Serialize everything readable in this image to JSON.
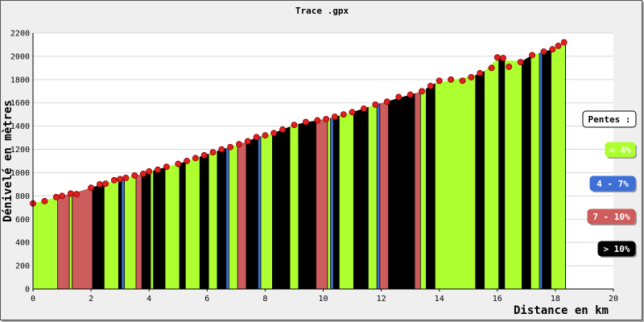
{
  "chart_data": {
    "type": "area",
    "title": "Trace .gpx",
    "xlabel": "Distance en km",
    "ylabel": "Dénivelé en mètres",
    "xlim": [
      0,
      20
    ],
    "ylim": [
      0,
      2200
    ],
    "x_ticks": [
      "0",
      "2",
      "4",
      "6",
      "8",
      "10",
      "12",
      "14",
      "16",
      "18",
      "20"
    ],
    "y_ticks": [
      "0",
      "200",
      "400",
      "600",
      "800",
      "1000",
      "1200",
      "1400",
      "1600",
      "1800",
      "2000",
      "2200"
    ],
    "grid": true,
    "legend": {
      "title": "Pentes :",
      "position": "right",
      "items": [
        {
          "label": "< 4%",
          "color": "#adff2f",
          "text_color": "#ffffff"
        },
        {
          "label": "4 - 7%",
          "color": "#3d6fd6",
          "text_color": "#ffffff"
        },
        {
          "label": "7 - 10%",
          "color": "#cd5c5c",
          "text_color": "#ffffff"
        },
        {
          "label": "> 10%",
          "color": "#000000",
          "text_color": "#ffffff"
        }
      ]
    },
    "profile": [
      [
        0.0,
        735
      ],
      [
        0.4,
        755
      ],
      [
        0.8,
        790
      ],
      [
        1.0,
        800
      ],
      [
        1.3,
        820
      ],
      [
        1.5,
        815
      ],
      [
        2.0,
        870
      ],
      [
        2.3,
        900
      ],
      [
        2.5,
        905
      ],
      [
        2.8,
        935
      ],
      [
        3.0,
        945
      ],
      [
        3.2,
        955
      ],
      [
        3.5,
        975
      ],
      [
        3.8,
        990
      ],
      [
        4.0,
        1010
      ],
      [
        4.3,
        1025
      ],
      [
        4.6,
        1050
      ],
      [
        5.0,
        1075
      ],
      [
        5.3,
        1100
      ],
      [
        5.6,
        1125
      ],
      [
        5.9,
        1150
      ],
      [
        6.2,
        1175
      ],
      [
        6.5,
        1200
      ],
      [
        6.8,
        1220
      ],
      [
        7.1,
        1245
      ],
      [
        7.4,
        1270
      ],
      [
        7.7,
        1305
      ],
      [
        8.0,
        1320
      ],
      [
        8.3,
        1340
      ],
      [
        8.6,
        1370
      ],
      [
        9.0,
        1410
      ],
      [
        9.4,
        1435
      ],
      [
        9.8,
        1450
      ],
      [
        10.1,
        1460
      ],
      [
        10.4,
        1480
      ],
      [
        10.7,
        1500
      ],
      [
        11.0,
        1520
      ],
      [
        11.4,
        1550
      ],
      [
        11.8,
        1585
      ],
      [
        12.2,
        1610
      ],
      [
        12.6,
        1650
      ],
      [
        13.0,
        1670
      ],
      [
        13.4,
        1700
      ],
      [
        13.7,
        1745
      ],
      [
        14.0,
        1790
      ],
      [
        14.4,
        1800
      ],
      [
        14.8,
        1790
      ],
      [
        15.1,
        1820
      ],
      [
        15.4,
        1855
      ],
      [
        15.8,
        1900
      ],
      [
        16.0,
        1990
      ],
      [
        16.2,
        1985
      ],
      [
        16.4,
        1910
      ],
      [
        16.8,
        1950
      ],
      [
        17.2,
        2010
      ],
      [
        17.6,
        2040
      ],
      [
        17.9,
        2060
      ],
      [
        18.1,
        2090
      ],
      [
        18.3,
        2120
      ]
    ],
    "slope_segments": [
      {
        "from": 0.0,
        "to": 0.85,
        "class": "< 4%"
      },
      {
        "from": 0.85,
        "to": 1.25,
        "class": "7 - 10%"
      },
      {
        "from": 1.25,
        "to": 1.35,
        "class": "< 4%"
      },
      {
        "from": 1.35,
        "to": 2.05,
        "class": "7 - 10%"
      },
      {
        "from": 2.05,
        "to": 2.45,
        "class": "> 10%"
      },
      {
        "from": 2.45,
        "to": 2.95,
        "class": "< 4%"
      },
      {
        "from": 2.95,
        "to": 3.05,
        "class": "> 10%"
      },
      {
        "from": 3.05,
        "to": 3.15,
        "class": "4 - 7%"
      },
      {
        "from": 3.15,
        "to": 3.55,
        "class": "< 4%"
      },
      {
        "from": 3.55,
        "to": 3.75,
        "class": "7 - 10%"
      },
      {
        "from": 3.75,
        "to": 4.05,
        "class": "> 10%"
      },
      {
        "from": 4.05,
        "to": 4.15,
        "class": "< 4%"
      },
      {
        "from": 4.15,
        "to": 4.55,
        "class": "> 10%"
      },
      {
        "from": 4.55,
        "to": 5.05,
        "class": "< 4%"
      },
      {
        "from": 5.05,
        "to": 5.25,
        "class": "> 10%"
      },
      {
        "from": 5.25,
        "to": 5.75,
        "class": "< 4%"
      },
      {
        "from": 5.75,
        "to": 6.05,
        "class": "> 10%"
      },
      {
        "from": 6.05,
        "to": 6.35,
        "class": "< 4%"
      },
      {
        "from": 6.35,
        "to": 6.65,
        "class": "> 10%"
      },
      {
        "from": 6.65,
        "to": 6.75,
        "class": "4 - 7%"
      },
      {
        "from": 6.75,
        "to": 7.05,
        "class": "< 4%"
      },
      {
        "from": 7.05,
        "to": 7.35,
        "class": "7 - 10%"
      },
      {
        "from": 7.35,
        "to": 7.75,
        "class": "> 10%"
      },
      {
        "from": 7.75,
        "to": 7.85,
        "class": "4 - 7%"
      },
      {
        "from": 7.85,
        "to": 8.25,
        "class": "< 4%"
      },
      {
        "from": 8.25,
        "to": 8.85,
        "class": "> 10%"
      },
      {
        "from": 8.85,
        "to": 9.15,
        "class": "< 4%"
      },
      {
        "from": 9.15,
        "to": 9.75,
        "class": "> 10%"
      },
      {
        "from": 9.75,
        "to": 10.15,
        "class": "7 - 10%"
      },
      {
        "from": 10.15,
        "to": 10.25,
        "class": "< 4%"
      },
      {
        "from": 10.25,
        "to": 10.35,
        "class": "4 - 7%"
      },
      {
        "from": 10.35,
        "to": 10.55,
        "class": "> 10%"
      },
      {
        "from": 10.55,
        "to": 11.05,
        "class": "< 4%"
      },
      {
        "from": 11.05,
        "to": 11.55,
        "class": "> 10%"
      },
      {
        "from": 11.55,
        "to": 11.85,
        "class": "< 4%"
      },
      {
        "from": 11.85,
        "to": 11.95,
        "class": "4 - 7%"
      },
      {
        "from": 11.95,
        "to": 12.25,
        "class": "7 - 10%"
      },
      {
        "from": 12.25,
        "to": 13.15,
        "class": "> 10%"
      },
      {
        "from": 13.15,
        "to": 13.35,
        "class": "7 - 10%"
      },
      {
        "from": 13.35,
        "to": 13.55,
        "class": "< 4%"
      },
      {
        "from": 13.55,
        "to": 13.85,
        "class": "> 10%"
      },
      {
        "from": 13.85,
        "to": 15.25,
        "class": "< 4%"
      },
      {
        "from": 15.25,
        "to": 15.55,
        "class": "> 10%"
      },
      {
        "from": 15.55,
        "to": 16.05,
        "class": "< 4%"
      },
      {
        "from": 16.05,
        "to": 16.25,
        "class": "> 10%"
      },
      {
        "from": 16.25,
        "to": 16.85,
        "class": "< 4%"
      },
      {
        "from": 16.85,
        "to": 17.15,
        "class": "> 10%"
      },
      {
        "from": 17.15,
        "to": 17.45,
        "class": "< 4%"
      },
      {
        "from": 17.45,
        "to": 17.55,
        "class": "4 - 7%"
      },
      {
        "from": 17.55,
        "to": 17.85,
        "class": "> 10%"
      },
      {
        "from": 17.85,
        "to": 18.35,
        "class": "< 4%"
      }
    ]
  }
}
